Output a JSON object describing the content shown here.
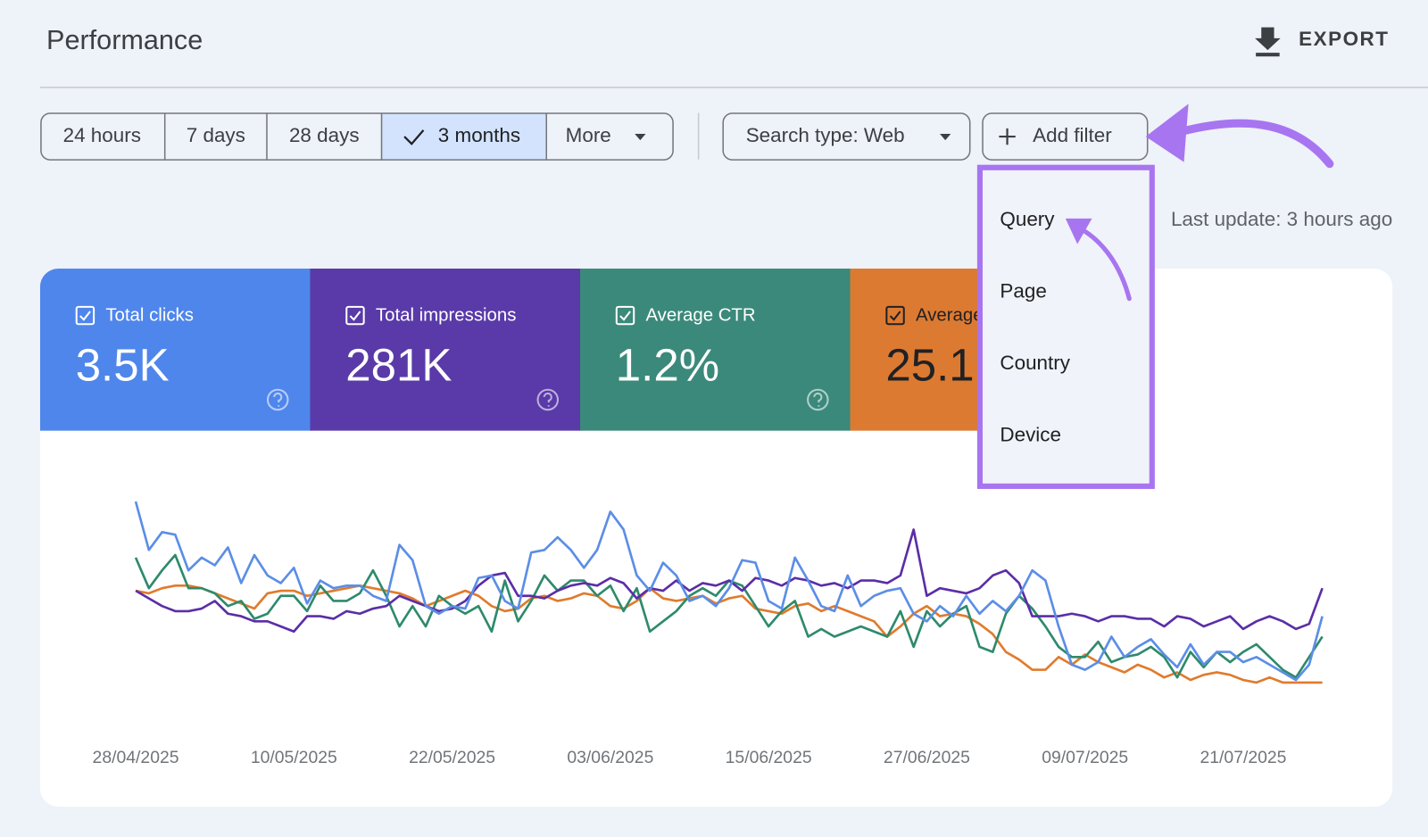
{
  "header": {
    "title": "Performance",
    "export": "EXPORT"
  },
  "toolbar": {
    "date_ranges": [
      "24 hours",
      "7 days",
      "28 days",
      "3 months"
    ],
    "more": "More",
    "search_type": "Search type: Web",
    "add_filter": "Add filter"
  },
  "last_update": "Last update: 3 hours ago",
  "filter_menu": {
    "items": [
      "Query",
      "Page",
      "Country",
      "Device"
    ]
  },
  "metrics": [
    {
      "label": "Total clicks",
      "value": "3.5K",
      "color": "#4f86ec",
      "text_color": "#ffffff"
    },
    {
      "label": "Total impressions",
      "value": "281K",
      "color": "#5a3aa8",
      "text_color": "#ffffff"
    },
    {
      "label": "Average CTR",
      "value": "1.2%",
      "color": "#3b897a",
      "text_color": "#ffffff"
    },
    {
      "label": "Average position",
      "value": "25.1",
      "color": "#dd7a31",
      "text_color": "#202124"
    }
  ],
  "chart_data": {
    "type": "line",
    "x": [
      "28/04/2025",
      null,
      null,
      null,
      null,
      null,
      null,
      null,
      null,
      null,
      null,
      null,
      "10/05/2025",
      null,
      null,
      null,
      null,
      null,
      null,
      null,
      null,
      null,
      null,
      null,
      "22/05/2025",
      null,
      null,
      null,
      null,
      null,
      null,
      null,
      null,
      null,
      null,
      null,
      "03/06/2025",
      null,
      null,
      null,
      null,
      null,
      null,
      null,
      null,
      null,
      null,
      null,
      "15/06/2025",
      null,
      null,
      null,
      null,
      null,
      null,
      null,
      null,
      null,
      null,
      null,
      "27/06/2025",
      null,
      null,
      null,
      null,
      null,
      null,
      null,
      null,
      null,
      null,
      null,
      "09/07/2025",
      null,
      null,
      null,
      null,
      null,
      null,
      null,
      null,
      null,
      null,
      null,
      "21/07/2025",
      null,
      null,
      null,
      null,
      null,
      null
    ],
    "ylim": [
      0,
      100
    ],
    "series": [
      {
        "color": "#e07b2c",
        "values": [
          54,
          53,
          55,
          56,
          56,
          55,
          53,
          51,
          49,
          47,
          53,
          54,
          54,
          52,
          53,
          54,
          55,
          56,
          55,
          54,
          53,
          51,
          48,
          50,
          52,
          54,
          52,
          48,
          46,
          47,
          51,
          52,
          50,
          51,
          53,
          52,
          48,
          47,
          50,
          55,
          51,
          50,
          51,
          52,
          49,
          51,
          52,
          47,
          46,
          45,
          48,
          49,
          46,
          48,
          46,
          44,
          42,
          36,
          40,
          45,
          48,
          44,
          45,
          44,
          41,
          37,
          30,
          27,
          23,
          23,
          28,
          25,
          29,
          26,
          24,
          22,
          25,
          23,
          20,
          22,
          19,
          21,
          22,
          21,
          19,
          18,
          20,
          18,
          18,
          18,
          18
        ]
      },
      {
        "color": "#2e8a6c",
        "values": [
          67,
          55,
          62,
          68,
          55,
          55,
          53,
          48,
          50,
          43,
          45,
          52,
          52,
          46,
          56,
          50,
          50,
          53,
          62,
          52,
          40,
          48,
          40,
          52,
          48,
          45,
          48,
          38,
          58,
          42,
          50,
          60,
          54,
          58,
          58,
          52,
          56,
          46,
          55,
          38,
          42,
          46,
          52,
          55,
          52,
          58,
          56,
          48,
          40,
          46,
          50,
          36,
          39,
          36,
          38,
          40,
          38,
          36,
          46,
          32,
          46,
          40,
          45,
          48,
          32,
          30,
          45,
          52,
          47,
          40,
          32,
          28,
          28,
          34,
          26,
          28,
          29,
          32,
          28,
          20,
          30,
          24,
          30,
          26,
          30,
          33,
          28,
          23,
          20,
          28,
          36
        ]
      },
      {
        "color": "#5b2ea6",
        "values": [
          54,
          51,
          48,
          46,
          46,
          47,
          50,
          45,
          44,
          42,
          42,
          40,
          38,
          44,
          44,
          43,
          46,
          45,
          47,
          48,
          52,
          50,
          48,
          46,
          47,
          50,
          56,
          60,
          61,
          52,
          52,
          51,
          54,
          56,
          57,
          56,
          59,
          57,
          51,
          55,
          54,
          58,
          54,
          57,
          56,
          58,
          54,
          59,
          58,
          56,
          59,
          58,
          56,
          57,
          55,
          58,
          58,
          57,
          60,
          78,
          52,
          55,
          54,
          53,
          55,
          60,
          62,
          57,
          44,
          44,
          44,
          45,
          44,
          42,
          44,
          44,
          43,
          43,
          40,
          44,
          43,
          40,
          42,
          44,
          39,
          42,
          44,
          42,
          39,
          41,
          55
        ]
      },
      {
        "color": "#5b8ee6",
        "values": [
          89,
          70,
          77,
          76,
          62,
          67,
          64,
          71,
          57,
          68,
          60,
          57,
          63,
          49,
          58,
          55,
          56,
          56,
          52,
          50,
          72,
          66,
          48,
          45,
          48,
          47,
          59,
          60,
          50,
          47,
          69,
          70,
          75,
          70,
          63,
          70,
          85,
          78,
          60,
          54,
          65,
          60,
          50,
          52,
          48,
          55,
          66,
          65,
          50,
          47,
          67,
          58,
          48,
          46,
          60,
          48,
          52,
          54,
          55,
          45,
          42,
          48,
          44,
          52,
          45,
          50,
          46,
          52,
          62,
          58,
          40,
          25,
          23,
          26,
          36,
          28,
          32,
          35,
          29,
          24,
          33,
          25,
          30,
          30,
          26,
          28,
          25,
          22,
          19,
          25,
          44
        ]
      }
    ]
  }
}
